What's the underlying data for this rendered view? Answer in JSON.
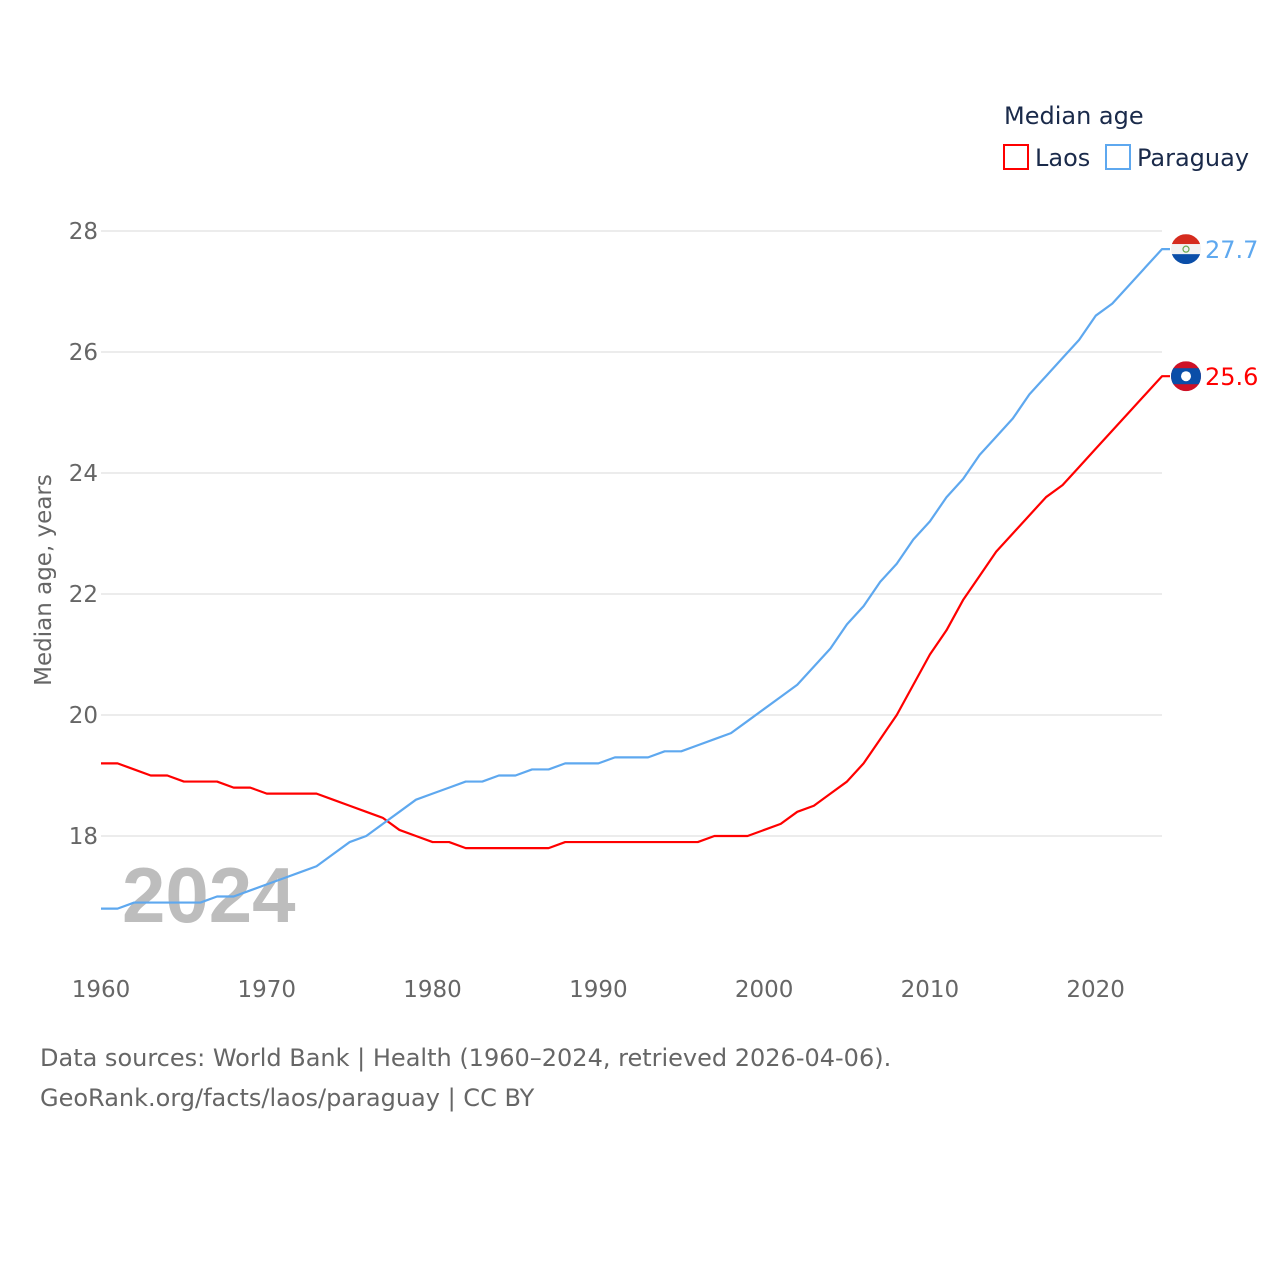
{
  "chart_data": {
    "type": "line",
    "title": "Median age",
    "ylabel": "Median age, years",
    "xlabel": "",
    "xlim": [
      1960,
      2024
    ],
    "ylim": [
      16.1,
      28
    ],
    "grid": true,
    "legend_placement": "top-right",
    "x_ticks": [
      "1960",
      "1970",
      "1980",
      "1990",
      "2000",
      "2010",
      "2020"
    ],
    "y_ticks": [
      "18",
      "20",
      "22",
      "24",
      "26",
      "28"
    ],
    "watermark_year": "2024",
    "x": [
      1960,
      1961,
      1962,
      1963,
      1964,
      1965,
      1966,
      1967,
      1968,
      1969,
      1970,
      1971,
      1972,
      1973,
      1974,
      1975,
      1976,
      1977,
      1978,
      1979,
      1980,
      1981,
      1982,
      1983,
      1984,
      1985,
      1986,
      1987,
      1988,
      1989,
      1990,
      1991,
      1992,
      1993,
      1994,
      1995,
      1996,
      1997,
      1998,
      1999,
      2000,
      2001,
      2002,
      2003,
      2004,
      2005,
      2006,
      2007,
      2008,
      2009,
      2010,
      2011,
      2012,
      2013,
      2014,
      2015,
      2016,
      2017,
      2018,
      2019,
      2020,
      2021,
      2022,
      2023,
      2024
    ],
    "series": [
      {
        "name": "Laos",
        "color": "#ff0000",
        "end_label": "25.6",
        "values": [
          19.2,
          19.2,
          19.1,
          19.0,
          19.0,
          18.9,
          18.9,
          18.9,
          18.8,
          18.8,
          18.7,
          18.7,
          18.7,
          18.7,
          18.6,
          18.5,
          18.4,
          18.3,
          18.1,
          18.0,
          17.9,
          17.9,
          17.8,
          17.8,
          17.8,
          17.8,
          17.8,
          17.8,
          17.9,
          17.9,
          17.9,
          17.9,
          17.9,
          17.9,
          17.9,
          17.9,
          17.9,
          18.0,
          18.0,
          18.0,
          18.1,
          18.2,
          18.4,
          18.5,
          18.7,
          18.9,
          19.2,
          19.6,
          20.0,
          20.5,
          21.0,
          21.4,
          21.9,
          22.3,
          22.7,
          23.0,
          23.3,
          23.6,
          23.8,
          24.1,
          24.4,
          24.7,
          25.0,
          25.3,
          25.6
        ]
      },
      {
        "name": "Paraguay",
        "color": "#5ea8ef",
        "end_label": "27.7",
        "values": [
          16.8,
          16.8,
          16.9,
          16.9,
          16.9,
          16.9,
          16.9,
          17.0,
          17.0,
          17.1,
          17.2,
          17.3,
          17.4,
          17.5,
          17.7,
          17.9,
          18.0,
          18.2,
          18.4,
          18.6,
          18.7,
          18.8,
          18.9,
          18.9,
          19.0,
          19.0,
          19.1,
          19.1,
          19.2,
          19.2,
          19.2,
          19.3,
          19.3,
          19.3,
          19.4,
          19.4,
          19.5,
          19.6,
          19.7,
          19.9,
          20.1,
          20.3,
          20.5,
          20.8,
          21.1,
          21.5,
          21.8,
          22.2,
          22.5,
          22.9,
          23.2,
          23.6,
          23.9,
          24.3,
          24.6,
          24.9,
          25.3,
          25.6,
          25.9,
          26.2,
          26.6,
          26.8,
          27.1,
          27.4,
          27.7
        ]
      }
    ]
  },
  "footer": {
    "line1": "Data sources: World Bank | Health (1960–2024, retrieved 2026-04-06).",
    "line2": "GeoRank.org/facts/laos/paraguay | CC BY"
  }
}
